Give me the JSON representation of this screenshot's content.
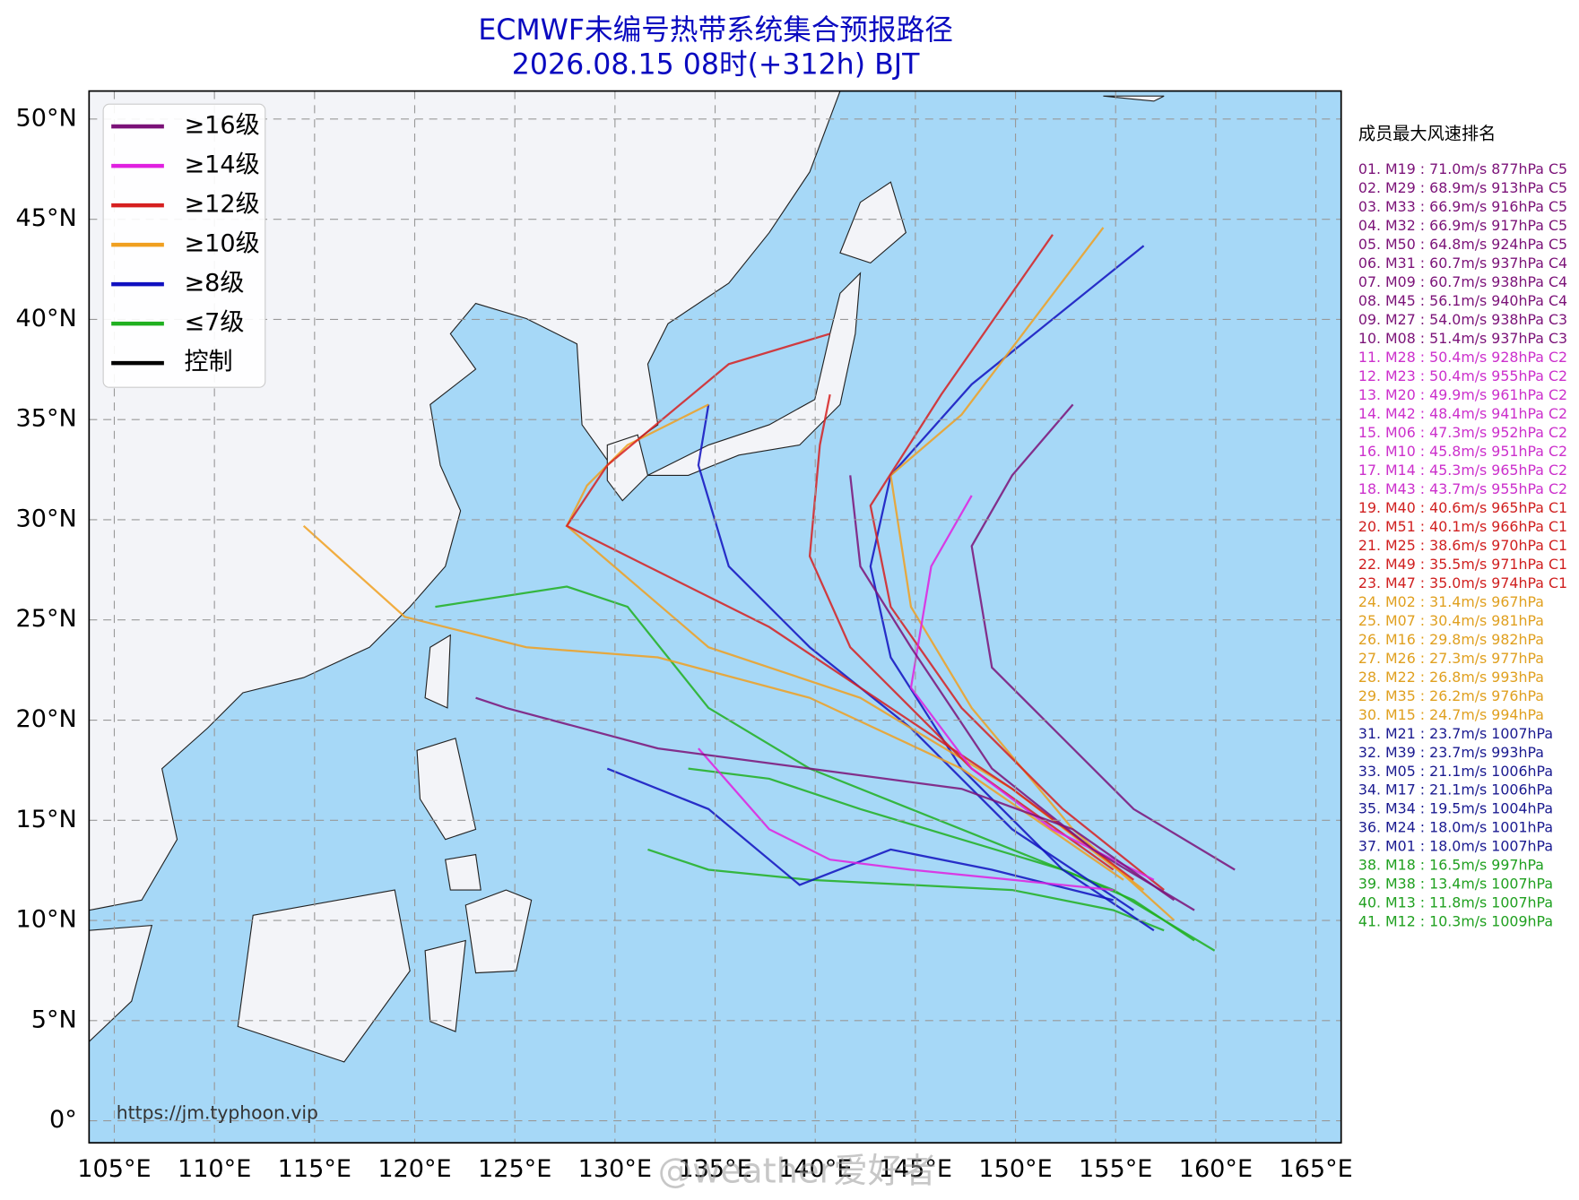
{
  "title": {
    "line1": "ECMWF未编号热带系统集合预报路径",
    "line2": "2026.08.15 08时(+312h) BJT"
  },
  "map": {
    "lon_range": [
      103.74,
      166.26
    ],
    "lat_range": [
      -1.1,
      51.4
    ],
    "lat_ticks": [
      {
        "value": 50,
        "label": "50°N"
      },
      {
        "value": 45,
        "label": "45°N"
      },
      {
        "value": 40,
        "label": "40°N"
      },
      {
        "value": 35,
        "label": "35°N"
      },
      {
        "value": 30,
        "label": "30°N"
      },
      {
        "value": 25,
        "label": "25°N"
      },
      {
        "value": 20,
        "label": "20°N"
      },
      {
        "value": 15,
        "label": "15°N"
      },
      {
        "value": 10,
        "label": "10°N"
      },
      {
        "value": 5,
        "label": "5°N"
      },
      {
        "value": 0,
        "label": "0°"
      }
    ],
    "lon_ticks": [
      {
        "value": 105,
        "label": "105°E"
      },
      {
        "value": 110,
        "label": "110°E"
      },
      {
        "value": 115,
        "label": "115°E"
      },
      {
        "value": 120,
        "label": "120°E"
      },
      {
        "value": 125,
        "label": "125°E"
      },
      {
        "value": 130,
        "label": "130°E"
      },
      {
        "value": 135,
        "label": "135°E"
      },
      {
        "value": 140,
        "label": "140°E"
      },
      {
        "value": 145,
        "label": "145°E"
      },
      {
        "value": 150,
        "label": "150°E"
      },
      {
        "value": 155,
        "label": "155°E"
      },
      {
        "value": 160,
        "label": "160°E"
      },
      {
        "value": 165,
        "label": "165°E"
      }
    ]
  },
  "legend": [
    {
      "label": "≥16级",
      "color": "#7b1278"
    },
    {
      "label": "≥14级",
      "color": "#e020e0"
    },
    {
      "label": "≥12级",
      "color": "#d62020"
    },
    {
      "label": "≥10级",
      "color": "#f0a020"
    },
    {
      "label": "≥8级",
      "color": "#1010c0"
    },
    {
      "label": "≤7级",
      "color": "#20b020"
    },
    {
      "label": "控制",
      "color": "#000000"
    }
  ],
  "ranking": {
    "title": "成员最大风速排名",
    "items": [
      {
        "text": "01. M19 : 71.0m/s 877hPa C5",
        "color": "#7b1278"
      },
      {
        "text": "02. M29 : 68.9m/s 913hPa C5",
        "color": "#7b1278"
      },
      {
        "text": "03. M33 : 66.9m/s 916hPa C5",
        "color": "#7b1278"
      },
      {
        "text": "04. M32 : 66.9m/s 917hPa C5",
        "color": "#7b1278"
      },
      {
        "text": "05. M50 : 64.8m/s 924hPa C5",
        "color": "#7b1278"
      },
      {
        "text": "06. M31 : 60.7m/s 937hPa C4",
        "color": "#7b1278"
      },
      {
        "text": "07. M09 : 60.7m/s 938hPa C4",
        "color": "#7b1278"
      },
      {
        "text": "08. M45 : 56.1m/s 940hPa C4",
        "color": "#7b1278"
      },
      {
        "text": "09. M27 : 54.0m/s 938hPa C3",
        "color": "#7b1278"
      },
      {
        "text": "10. M08 : 51.4m/s 937hPa C3",
        "color": "#7b1278"
      },
      {
        "text": "11. M28 : 50.4m/s 928hPa C2",
        "color": "#cc30cc"
      },
      {
        "text": "12. M23 : 50.4m/s 955hPa C2",
        "color": "#cc30cc"
      },
      {
        "text": "13. M20 : 49.9m/s 961hPa C2",
        "color": "#cc30cc"
      },
      {
        "text": "14. M42 : 48.4m/s 941hPa C2",
        "color": "#cc30cc"
      },
      {
        "text": "15. M06 : 47.3m/s 952hPa C2",
        "color": "#cc30cc"
      },
      {
        "text": "16. M10 : 45.8m/s 951hPa C2",
        "color": "#cc30cc"
      },
      {
        "text": "17. M14 : 45.3m/s 965hPa C2",
        "color": "#cc30cc"
      },
      {
        "text": "18. M43 : 43.7m/s 955hPa C2",
        "color": "#cc30cc"
      },
      {
        "text": "19. M40 : 40.6m/s 965hPa C1",
        "color": "#d02020"
      },
      {
        "text": "20. M51 : 40.1m/s 966hPa C1",
        "color": "#d02020"
      },
      {
        "text": "21. M25 : 38.6m/s 970hPa C1",
        "color": "#d02020"
      },
      {
        "text": "22. M49 : 35.5m/s 971hPa C1",
        "color": "#d02020"
      },
      {
        "text": "23. M47 : 35.0m/s 974hPa C1",
        "color": "#d02020"
      },
      {
        "text": "24. M02 : 31.4m/s 967hPa",
        "color": "#e0a020"
      },
      {
        "text": "25. M07 : 30.4m/s 981hPa",
        "color": "#e0a020"
      },
      {
        "text": "26. M16 : 29.8m/s 982hPa",
        "color": "#e0a020"
      },
      {
        "text": "27. M26 : 27.3m/s 977hPa",
        "color": "#e0a020"
      },
      {
        "text": "28. M22 : 26.8m/s 993hPa",
        "color": "#e0a020"
      },
      {
        "text": "29. M35 : 26.2m/s 976hPa",
        "color": "#e0a020"
      },
      {
        "text": "30. M15 : 24.7m/s 994hPa",
        "color": "#e0a020"
      },
      {
        "text": "31. M21 : 23.7m/s 1007hPa",
        "color": "#1a1a90"
      },
      {
        "text": "32. M39 : 23.7m/s 993hPa",
        "color": "#1a1a90"
      },
      {
        "text": "33. M05 : 21.1m/s 1006hPa",
        "color": "#1a1a90"
      },
      {
        "text": "34. M17 : 21.1m/s 1006hPa",
        "color": "#1a1a90"
      },
      {
        "text": "35. M34 : 19.5m/s 1004hPa",
        "color": "#1a1a90"
      },
      {
        "text": "36. M24 : 18.0m/s 1001hPa",
        "color": "#1a1a90"
      },
      {
        "text": "37. M01 : 18.0m/s 1007hPa",
        "color": "#1a1a90"
      },
      {
        "text": "38. M18 : 16.5m/s 997hPa",
        "color": "#20a020"
      },
      {
        "text": "39. M38 : 13.4m/s 1007hPa",
        "color": "#20a020"
      },
      {
        "text": "40. M13 : 11.8m/s 1007hPa",
        "color": "#20a020"
      },
      {
        "text": "41. M12 : 10.3m/s 1009hPa",
        "color": "#20a020"
      }
    ]
  },
  "source": "https://jm.typhoon.vip",
  "watermark": "@weather爱好者"
}
